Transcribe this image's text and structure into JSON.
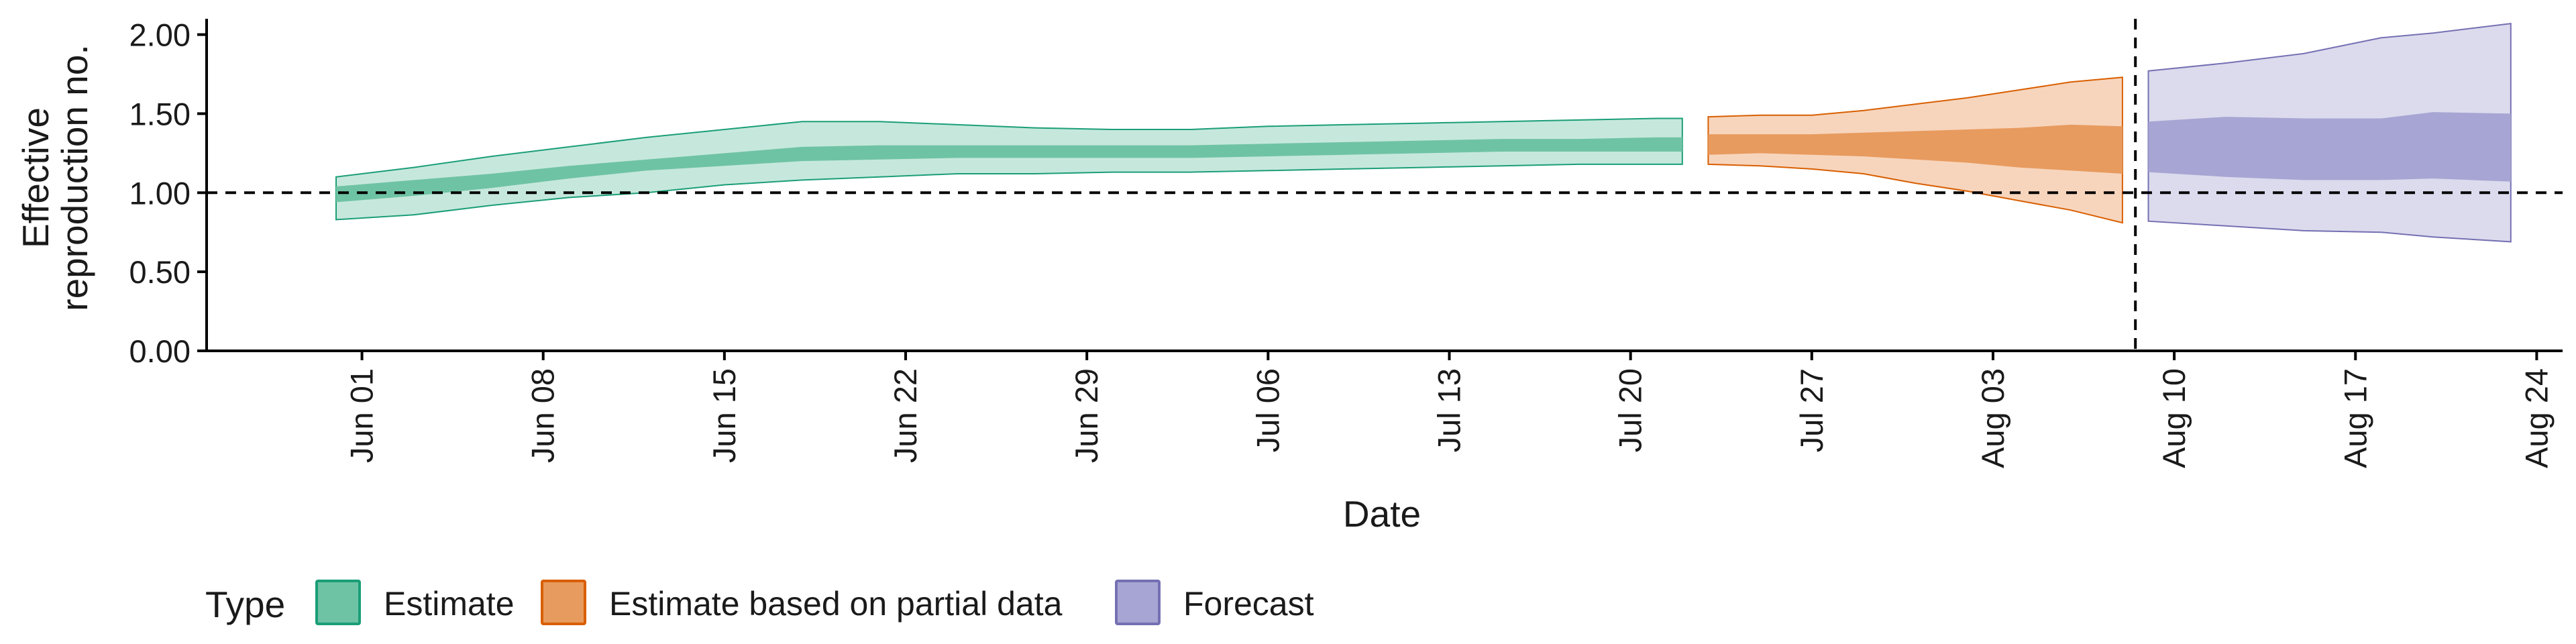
{
  "chart_data": {
    "type": "area",
    "xlabel": "Date",
    "ylabel_lines": [
      "Effective",
      "reproduction no."
    ],
    "ylim": [
      0,
      2.1
    ],
    "xlim": [
      "2020-05-26",
      "2020-08-25"
    ],
    "y_ticks": [
      0.0,
      0.5,
      1.0,
      1.5,
      2.0
    ],
    "y_tick_labels": [
      "0.00",
      "0.50",
      "1.00",
      "1.50",
      "2.00"
    ],
    "x_ticks": [
      "2020-06-01",
      "2020-06-08",
      "2020-06-15",
      "2020-06-22",
      "2020-06-29",
      "2020-07-06",
      "2020-07-13",
      "2020-07-20",
      "2020-07-27",
      "2020-08-03",
      "2020-08-10",
      "2020-08-17",
      "2020-08-24"
    ],
    "x_tick_labels": [
      "Jun 01",
      "Jun 08",
      "Jun 15",
      "Jun 22",
      "Jun 29",
      "Jul 06",
      "Jul 13",
      "Jul 20",
      "Jul 27",
      "Aug 03",
      "Aug 10",
      "Aug 17",
      "Aug 24"
    ],
    "reference_hline": 1.0,
    "forecast_vline_date": "2020-08-08",
    "grid": false,
    "legend": {
      "title": "Type",
      "placement": "bottom-left",
      "entries": [
        {
          "label": "Estimate",
          "fill": "#6fc3a5",
          "stroke": "#1b9e77"
        },
        {
          "label": "Estimate based on partial data",
          "fill": "#e89b5f",
          "stroke": "#d95f02"
        },
        {
          "label": "Forecast",
          "fill": "#a7a5d3",
          "stroke": "#7570b3"
        }
      ]
    },
    "series": [
      {
        "name": "Estimate",
        "outer_color": "#c6e8dc",
        "inner_color": "#6fc3a5",
        "line_color": "#1b9e77",
        "points": [
          {
            "date": "2020-05-31",
            "lo90": 0.83,
            "lo50": 0.94,
            "hi50": 1.04,
            "hi90": 1.1
          },
          {
            "date": "2020-06-03",
            "lo90": 0.86,
            "lo50": 0.98,
            "hi50": 1.08,
            "hi90": 1.16
          },
          {
            "date": "2020-06-06",
            "lo90": 0.92,
            "lo50": 1.03,
            "hi50": 1.12,
            "hi90": 1.23
          },
          {
            "date": "2020-06-09",
            "lo90": 0.97,
            "lo50": 1.09,
            "hi50": 1.17,
            "hi90": 1.29
          },
          {
            "date": "2020-06-12",
            "lo90": 1.0,
            "lo50": 1.14,
            "hi50": 1.21,
            "hi90": 1.35
          },
          {
            "date": "2020-06-15",
            "lo90": 1.05,
            "lo50": 1.17,
            "hi50": 1.25,
            "hi90": 1.4
          },
          {
            "date": "2020-06-18",
            "lo90": 1.08,
            "lo50": 1.2,
            "hi50": 1.29,
            "hi90": 1.45
          },
          {
            "date": "2020-06-21",
            "lo90": 1.1,
            "lo50": 1.21,
            "hi50": 1.3,
            "hi90": 1.45
          },
          {
            "date": "2020-06-24",
            "lo90": 1.12,
            "lo50": 1.22,
            "hi50": 1.3,
            "hi90": 1.43
          },
          {
            "date": "2020-06-27",
            "lo90": 1.12,
            "lo50": 1.22,
            "hi50": 1.3,
            "hi90": 1.41
          },
          {
            "date": "2020-06-30",
            "lo90": 1.13,
            "lo50": 1.22,
            "hi50": 1.3,
            "hi90": 1.4
          },
          {
            "date": "2020-07-03",
            "lo90": 1.13,
            "lo50": 1.22,
            "hi50": 1.3,
            "hi90": 1.4
          },
          {
            "date": "2020-07-06",
            "lo90": 1.14,
            "lo50": 1.23,
            "hi50": 1.31,
            "hi90": 1.42
          },
          {
            "date": "2020-07-09",
            "lo90": 1.15,
            "lo50": 1.24,
            "hi50": 1.32,
            "hi90": 1.43
          },
          {
            "date": "2020-07-12",
            "lo90": 1.16,
            "lo50": 1.25,
            "hi50": 1.33,
            "hi90": 1.44
          },
          {
            "date": "2020-07-15",
            "lo90": 1.17,
            "lo50": 1.26,
            "hi50": 1.34,
            "hi90": 1.45
          },
          {
            "date": "2020-07-18",
            "lo90": 1.18,
            "lo50": 1.26,
            "hi50": 1.34,
            "hi90": 1.46
          },
          {
            "date": "2020-07-21",
            "lo90": 1.18,
            "lo50": 1.26,
            "hi50": 1.35,
            "hi90": 1.47
          },
          {
            "date": "2020-07-22",
            "lo90": 1.18,
            "lo50": 1.26,
            "hi50": 1.35,
            "hi90": 1.47
          }
        ]
      },
      {
        "name": "Estimate based on partial data",
        "outer_color": "#f7d5bd",
        "inner_color": "#e89b5f",
        "line_color": "#d95f02",
        "points": [
          {
            "date": "2020-07-23",
            "lo90": 1.18,
            "lo50": 1.24,
            "hi50": 1.37,
            "hi90": 1.48
          },
          {
            "date": "2020-07-25",
            "lo90": 1.17,
            "lo50": 1.25,
            "hi50": 1.37,
            "hi90": 1.49
          },
          {
            "date": "2020-07-27",
            "lo90": 1.15,
            "lo50": 1.24,
            "hi50": 1.37,
            "hi90": 1.49
          },
          {
            "date": "2020-07-29",
            "lo90": 1.12,
            "lo50": 1.23,
            "hi50": 1.38,
            "hi90": 1.52
          },
          {
            "date": "2020-07-31",
            "lo90": 1.06,
            "lo50": 1.21,
            "hi50": 1.39,
            "hi90": 1.56
          },
          {
            "date": "2020-08-02",
            "lo90": 1.01,
            "lo50": 1.19,
            "hi50": 1.4,
            "hi90": 1.6
          },
          {
            "date": "2020-08-04",
            "lo90": 0.95,
            "lo50": 1.16,
            "hi50": 1.41,
            "hi90": 1.65
          },
          {
            "date": "2020-08-06",
            "lo90": 0.89,
            "lo50": 1.14,
            "hi50": 1.43,
            "hi90": 1.7
          },
          {
            "date": "2020-08-08",
            "lo90": 0.81,
            "lo50": 1.12,
            "hi50": 1.42,
            "hi90": 1.73
          }
        ]
      },
      {
        "name": "Forecast",
        "outer_color": "#dcdbed",
        "inner_color": "#a7a5d3",
        "line_color": "#7570b3",
        "points": [
          {
            "date": "2020-08-09",
            "lo90": 0.82,
            "lo50": 1.13,
            "hi50": 1.45,
            "hi90": 1.77
          },
          {
            "date": "2020-08-12",
            "lo90": 0.79,
            "lo50": 1.1,
            "hi50": 1.48,
            "hi90": 1.82
          },
          {
            "date": "2020-08-15",
            "lo90": 0.76,
            "lo50": 1.08,
            "hi50": 1.47,
            "hi90": 1.88
          },
          {
            "date": "2020-08-18",
            "lo90": 0.75,
            "lo50": 1.08,
            "hi50": 1.47,
            "hi90": 1.98
          },
          {
            "date": "2020-08-20",
            "lo90": 0.72,
            "lo50": 1.09,
            "hi50": 1.51,
            "hi90": 2.01
          },
          {
            "date": "2020-08-23",
            "lo90": 0.69,
            "lo50": 1.07,
            "hi50": 1.5,
            "hi90": 2.07
          }
        ]
      }
    ]
  }
}
